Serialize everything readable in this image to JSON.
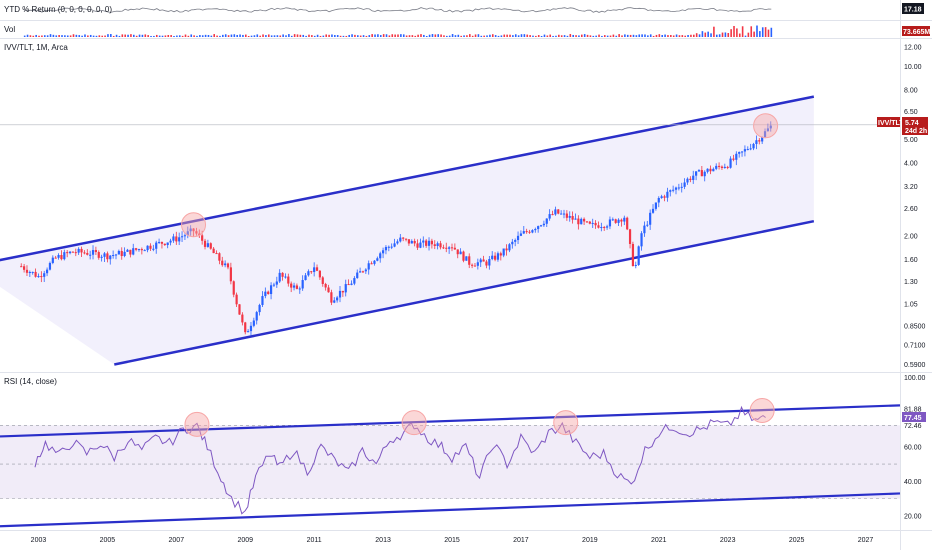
{
  "colors": {
    "up": "#2962ff",
    "down": "#f23645",
    "channel": "#2a2fc9",
    "channel_fill": "#ece9fb",
    "rsi_line": "#7e57c2",
    "rsi_band": "#ede7f6",
    "circle": "#f7a6a6",
    "ytd_line": "#787b86",
    "badge_dark": "#131722",
    "badge_red": "#b71c1c"
  },
  "panes": {
    "ytd": {
      "label": "YTD % Return (0, 0, 0, 0, 0, 0)",
      "badge": "17.18"
    },
    "vol": {
      "label": "Vol",
      "badge": "73.665M"
    },
    "price": {
      "label": "IVV/TLT, 1M, Arca",
      "symbol_badge": "IVV/TLT",
      "price_badge": "5.74",
      "countdown_badge": "24d 2h"
    },
    "rsi": {
      "label": "RSI (14, close)",
      "value_badge": "77.45",
      "upper_band": "72.46",
      "top_value": "81.88"
    }
  },
  "chart_data": [
    {
      "type": "line",
      "title": "YTD % Return (0, 0, 0, 0, 0, 0)",
      "last_value": 17.18
    },
    {
      "type": "bar",
      "title": "Vol",
      "last_value": "73.665M"
    },
    {
      "type": "candlestick",
      "title": "IVV/TLT, 1M, Arca",
      "scale": "log",
      "y_ticks": [
        "12.00",
        "10.00",
        "8.00",
        "6.50",
        "5.00",
        "4.00",
        "3.20",
        "2.60",
        "2.00",
        "1.60",
        "1.30",
        "1.05",
        "0.8500",
        "0.7100",
        "0.5900"
      ],
      "x_ticks": [
        "2003",
        "2005",
        "2007",
        "2009",
        "2011",
        "2013",
        "2015",
        "2017",
        "2019",
        "2021",
        "2023",
        "2025",
        "2027"
      ],
      "last_value": 5.74,
      "x": [
        2002.5,
        2003.0,
        2003.5,
        2004.0,
        2004.5,
        2005.0,
        2005.5,
        2006.0,
        2006.5,
        2007.0,
        2007.5,
        2008.0,
        2008.5,
        2009.0,
        2009.5,
        2010.0,
        2010.5,
        2011.0,
        2011.5,
        2012.0,
        2012.5,
        2013.0,
        2013.5,
        2014.0,
        2014.5,
        2015.0,
        2015.5,
        2016.0,
        2016.5,
        2017.0,
        2017.5,
        2018.0,
        2018.5,
        2019.0,
        2019.5,
        2020.0,
        2020.3,
        2020.5,
        2021.0,
        2021.5,
        2022.0,
        2022.5,
        2023.0,
        2023.5,
        2024.0,
        2024.3
      ],
      "y": [
        1.5,
        1.36,
        1.62,
        1.72,
        1.7,
        1.66,
        1.7,
        1.78,
        1.86,
        1.95,
        2.1,
        1.75,
        1.45,
        0.78,
        1.1,
        1.38,
        1.2,
        1.5,
        1.1,
        1.25,
        1.5,
        1.75,
        1.93,
        1.85,
        1.86,
        1.82,
        1.55,
        1.55,
        1.72,
        2.02,
        2.22,
        2.5,
        2.35,
        2.2,
        2.25,
        2.4,
        1.42,
        2.05,
        2.85,
        3.15,
        3.55,
        3.75,
        3.95,
        4.5,
        5.2,
        5.74
      ],
      "channel": {
        "upper": {
          "x": [
            2001.0,
            2025.5
          ],
          "y": [
            1.5,
            7.5
          ]
        },
        "lower": {
          "x": [
            2005.2,
            2025.5
          ],
          "y": [
            0.59,
            2.3
          ]
        }
      },
      "highlights": [
        2007.5,
        2024.1
      ]
    },
    {
      "type": "line",
      "title": "RSI (14, close)",
      "y_ticks": [
        "100.00",
        "81.88",
        "72.46",
        "60.00",
        "40.00",
        "20.00"
      ],
      "bands": [
        70,
        50,
        30
      ],
      "last_value": 77.45,
      "x": [
        2002.9,
        2003.2,
        2003.6,
        2004.0,
        2004.4,
        2004.8,
        2005.2,
        2005.6,
        2006.0,
        2006.4,
        2006.8,
        2007.2,
        2007.6,
        2007.9,
        2008.3,
        2008.6,
        2009.0,
        2009.3,
        2009.7,
        2010.0,
        2010.4,
        2010.8,
        2011.2,
        2011.6,
        2012.0,
        2012.4,
        2012.8,
        2013.2,
        2013.6,
        2013.9,
        2014.3,
        2014.7,
        2015.0,
        2015.4,
        2015.8,
        2016.2,
        2016.6,
        2017.0,
        2017.4,
        2017.8,
        2018.2,
        2018.6,
        2019.0,
        2019.4,
        2019.8,
        2020.2,
        2020.6,
        2021.0,
        2021.4,
        2021.8,
        2022.2,
        2022.6,
        2023.0,
        2023.4,
        2023.8,
        2024.1
      ],
      "y": [
        51,
        62,
        55,
        63,
        56,
        62,
        54,
        64,
        58,
        65,
        62,
        70,
        72,
        60,
        42,
        30,
        22,
        42,
        56,
        48,
        58,
        46,
        60,
        52,
        45,
        58,
        50,
        64,
        68,
        73,
        65,
        60,
        54,
        60,
        42,
        62,
        50,
        65,
        56,
        68,
        72,
        62,
        54,
        56,
        44,
        38,
        58,
        68,
        72,
        68,
        70,
        74,
        72,
        80,
        75,
        77
      ]
    }
  ]
}
